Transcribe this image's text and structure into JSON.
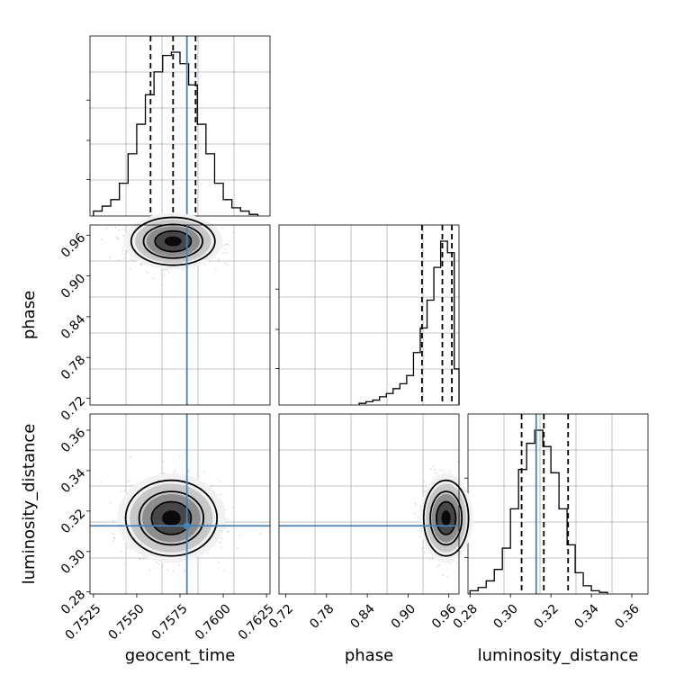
{
  "chart_data": {
    "type": "corner",
    "parameters": [
      "geocent_time",
      "phase",
      "luminosity_distance"
    ],
    "axis_labels": {
      "geocent_time": "geocent_time",
      "phase": "phase",
      "luminosity_distance": "luminosity_distance"
    },
    "ranges": {
      "geocent_time": [
        0.7523,
        0.7627
      ],
      "phase": [
        0.71,
        0.975
      ],
      "luminosity_distance": [
        0.279,
        0.368
      ]
    },
    "ticks": {
      "geocent_time": [
        "0.7525",
        "0.7550",
        "0.7575",
        "0.7600",
        "0.7625"
      ],
      "phase": [
        "0.72",
        "0.78",
        "0.84",
        "0.90",
        "0.96"
      ],
      "luminosity_distance": [
        "0.28",
        "0.30",
        "0.32",
        "0.34",
        "0.36"
      ]
    },
    "truths": {
      "geocent_time": 0.7579,
      "luminosity_distance": 0.3127
    },
    "quantiles": {
      "geocent_time": [
        0.7558,
        0.7571,
        0.7584
      ],
      "phase": [
        0.9205,
        0.9505,
        0.9645
      ],
      "luminosity_distance": [
        0.3055,
        0.3165,
        0.3285
      ]
    },
    "histograms": {
      "geocent_time": {
        "edges": [
          0.7525,
          0.753,
          0.7535,
          0.754,
          0.7545,
          0.755,
          0.7555,
          0.756,
          0.7565,
          0.757,
          0.7575,
          0.758,
          0.7585,
          0.759,
          0.7595,
          0.76,
          0.7605,
          0.761,
          0.7615,
          0.762
        ],
        "counts": [
          0.03,
          0.06,
          0.1,
          0.2,
          0.38,
          0.56,
          0.74,
          0.88,
          0.98,
          1.0,
          0.93,
          0.8,
          0.56,
          0.38,
          0.2,
          0.1,
          0.05,
          0.03,
          0.01
        ]
      },
      "phase": {
        "edges": [
          0.828,
          0.838,
          0.848,
          0.858,
          0.868,
          0.878,
          0.888,
          0.898,
          0.908,
          0.918,
          0.928,
          0.938,
          0.948,
          0.958,
          0.968,
          0.975
        ],
        "counts": [
          0.01,
          0.02,
          0.03,
          0.05,
          0.07,
          0.1,
          0.13,
          0.18,
          0.32,
          0.47,
          0.64,
          0.84,
          1.0,
          0.93,
          0.22
        ]
      },
      "luminosity_distance": {
        "edges": [
          0.28,
          0.284,
          0.288,
          0.292,
          0.296,
          0.3,
          0.304,
          0.308,
          0.312,
          0.316,
          0.32,
          0.324,
          0.328,
          0.332,
          0.336,
          0.34,
          0.344,
          0.348
        ],
        "counts": [
          0.02,
          0.04,
          0.08,
          0.15,
          0.28,
          0.52,
          0.76,
          0.92,
          1.0,
          0.9,
          0.74,
          0.52,
          0.3,
          0.13,
          0.05,
          0.02,
          0.01
        ]
      }
    },
    "grid": true
  },
  "colors": {
    "truth_line": "#4682b4",
    "hist_line": "#000000",
    "scatter": "#9a9a9a",
    "grid": "#b0b0b0"
  }
}
